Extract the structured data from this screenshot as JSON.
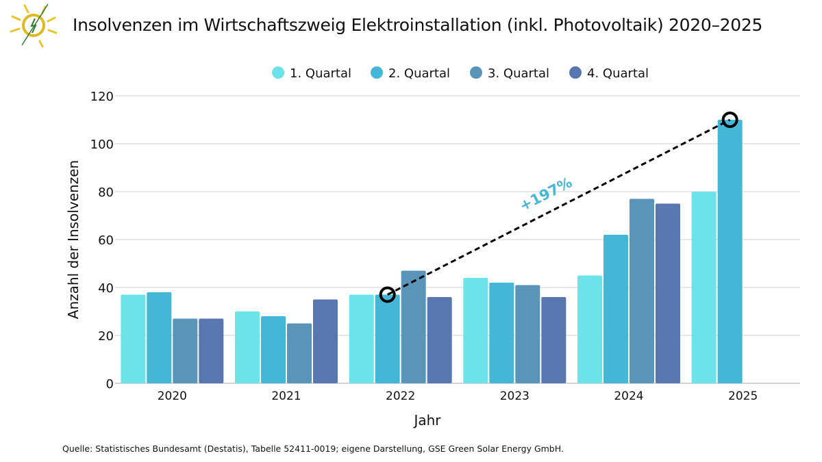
{
  "title": "Insolvenzen im Wirtschaftszweig Elektroinstallation (inkl. Photovoltaik) 2020–2025",
  "source": "Quelle: Statistisches Bundesamt (Destatis), Tabelle 52411-0019; eigene Darstellung, GSE Green Solar Energy GmbH.",
  "chart_data": {
    "type": "bar",
    "title": "Insolvenzen im Wirtschaftszweig Elektroinstallation (inkl. Photovoltaik) 2020–2025",
    "xlabel": "Jahr",
    "ylabel": "Anzahl der Insolvenzen",
    "ylim": [
      0,
      120
    ],
    "yticks": [
      0,
      20,
      40,
      60,
      80,
      100,
      120
    ],
    "grid": true,
    "legend_position": "top",
    "categories": [
      "2020",
      "2021",
      "2022",
      "2023",
      "2024",
      "2025"
    ],
    "series": [
      {
        "name": "1. Quartal",
        "color": "#6ce3e8",
        "values": [
          37,
          30,
          37,
          44,
          45,
          80
        ]
      },
      {
        "name": "2. Quartal",
        "color": "#44b7d7",
        "values": [
          38,
          28,
          37,
          42,
          62,
          110
        ]
      },
      {
        "name": "3. Quartal",
        "color": "#5a94b8",
        "values": [
          27,
          25,
          47,
          41,
          77,
          null
        ]
      },
      {
        "name": "4. Quartal",
        "color": "#5877b0",
        "values": [
          27,
          35,
          36,
          36,
          75,
          null
        ]
      }
    ],
    "annotation": {
      "label": "+197%",
      "color": "#44b7d7",
      "from": {
        "category": "2022",
        "series": "2. Quartal",
        "value": 37
      },
      "to": {
        "category": "2025",
        "series": "2. Quartal",
        "value": 110
      }
    }
  }
}
